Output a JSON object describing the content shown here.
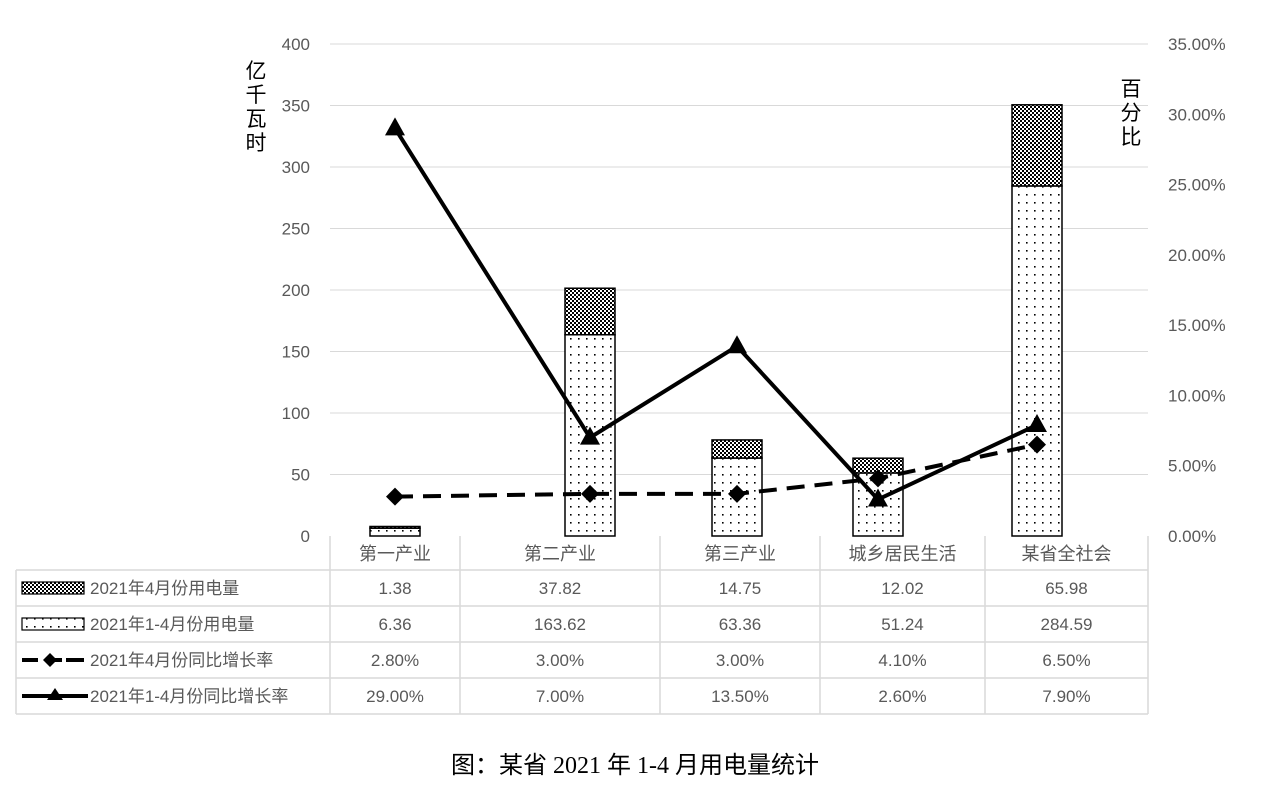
{
  "chart_data": {
    "type": "bar",
    "subtype": "stacked bar + line combo with data table",
    "title": "",
    "caption": "图：某省 2021 年 1-4 月用电量统计",
    "categories": [
      "第一产业",
      "第二产业",
      "第三产业",
      "城乡居民生活",
      "某省全社会"
    ],
    "series": [
      {
        "name": "2021年1-4月份用电量",
        "type": "bar",
        "axis": "left",
        "stack": "power",
        "pattern": "dots",
        "values": [
          6.36,
          163.62,
          63.36,
          51.24,
          284.59
        ],
        "labels": [
          "6.36",
          "163.62",
          "63.36",
          "51.24",
          "284.59"
        ]
      },
      {
        "name": "2021年4月份用电量",
        "type": "bar",
        "axis": "left",
        "stack": "power",
        "pattern": "checker",
        "values": [
          1.38,
          37.82,
          14.75,
          12.02,
          65.98
        ],
        "labels": [
          "1.38",
          "37.82",
          "14.75",
          "12.02",
          "65.98"
        ]
      },
      {
        "name": "2021年4月份同比增长率",
        "type": "line",
        "axis": "right",
        "style": "dashed",
        "marker": "diamond",
        "values": [
          2.8,
          3.0,
          3.0,
          4.1,
          6.5
        ],
        "labels": [
          "2.80%",
          "3.00%",
          "3.00%",
          "4.10%",
          "6.50%"
        ]
      },
      {
        "name": "2021年1-4月份同比增长率",
        "type": "line",
        "axis": "right",
        "style": "solid",
        "marker": "triangle",
        "values": [
          29.0,
          7.0,
          13.5,
          2.6,
          7.9
        ],
        "labels": [
          "29.00%",
          "7.00%",
          "13.50%",
          "2.60%",
          "7.90%"
        ]
      }
    ],
    "table_rows": [
      {
        "legend": "2021年4月份用电量",
        "symbol": "checker",
        "values": [
          "1.38",
          "37.82",
          "14.75",
          "12.02",
          "65.98"
        ]
      },
      {
        "legend": "2021年1-4月份用电量",
        "symbol": "dots",
        "values": [
          "6.36",
          "163.62",
          "63.36",
          "51.24",
          "284.59"
        ]
      },
      {
        "legend": "2021年4月份同比增长率",
        "symbol": "dashed-diamond",
        "values": [
          "2.80%",
          "3.00%",
          "3.00%",
          "4.10%",
          "6.50%"
        ]
      },
      {
        "legend": "2021年1-4月份同比增长率",
        "symbol": "solid-triangle",
        "values": [
          "29.00%",
          "7.00%",
          "13.50%",
          "2.60%",
          "7.90%"
        ]
      }
    ],
    "ylabel": "亿千瓦时",
    "y2label": "百分比",
    "ylim": [
      0,
      400
    ],
    "y2lim": [
      0,
      35
    ],
    "yticks": [
      "0",
      "50",
      "100",
      "150",
      "200",
      "250",
      "300",
      "350",
      "400"
    ],
    "y2ticks": [
      "0.00%",
      "5.00%",
      "10.00%",
      "15.00%",
      "20.00%",
      "25.00%",
      "30.00%",
      "35.00%"
    ],
    "grid": true,
    "legend_position": "data table (bottom)"
  }
}
